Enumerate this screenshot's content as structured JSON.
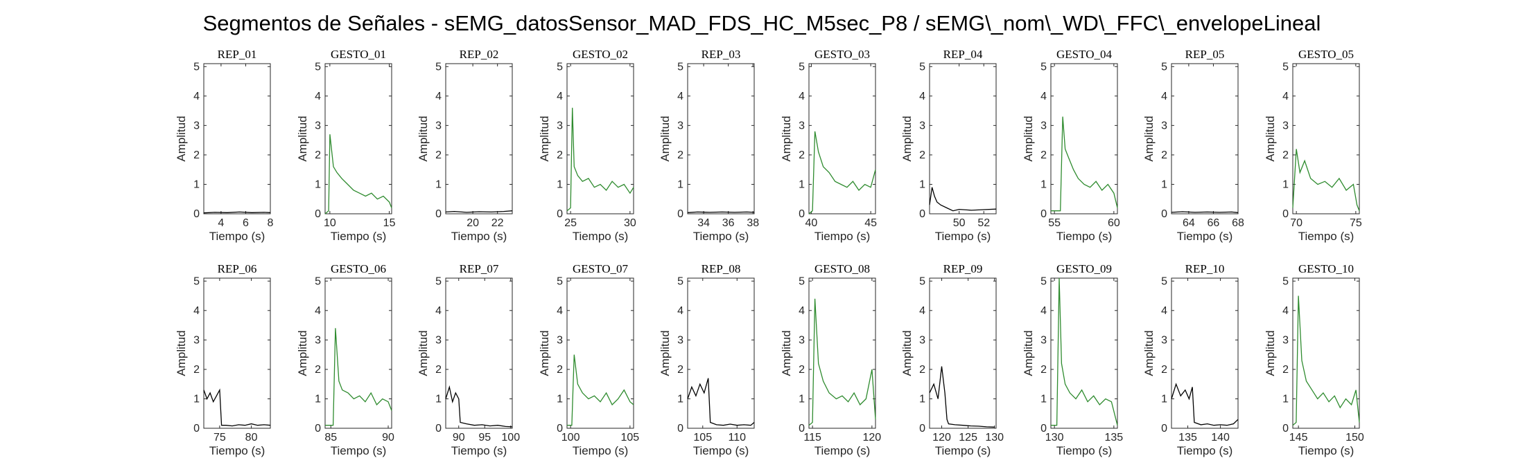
{
  "figure": {
    "title": "Segmentos de Señales - sEMG_datosSensor_MAD_FDS_HC_M5sec_P8 / sEMG\\_nom\\_WD\\_FFC\\_envelopeLineal"
  },
  "colors": {
    "rep": "#000000",
    "gesto": "#2e8b2e",
    "axes": "#262626"
  },
  "chart_data": [
    {
      "type": "line",
      "title": "REP_01",
      "xlabel": "Tiempo (s)",
      "ylabel": "Amplitud",
      "xlim": [
        2.6,
        8
      ],
      "ylim": [
        0,
        5.1
      ],
      "xticks": [
        4,
        6,
        8
      ],
      "yticks": [
        0,
        1,
        2,
        3,
        4,
        5
      ],
      "color": "#000000",
      "x": [
        2.6,
        3.5,
        4.5,
        5.5,
        6.5,
        7.5,
        8.0
      ],
      "y": [
        0.03,
        0.05,
        0.04,
        0.06,
        0.04,
        0.05,
        0.04
      ]
    },
    {
      "type": "line",
      "title": "GESTO_01",
      "xlabel": "Tiempo (s)",
      "ylabel": "Amplitud",
      "xlim": [
        9.6,
        15.2
      ],
      "ylim": [
        0,
        5.1
      ],
      "xticks": [
        10,
        15
      ],
      "yticks": [
        0,
        1,
        2,
        3,
        4,
        5
      ],
      "color": "#2e8b2e",
      "x": [
        9.6,
        9.9,
        10.0,
        10.3,
        10.6,
        11.0,
        11.5,
        12.0,
        12.5,
        13.0,
        13.5,
        14.0,
        14.5,
        15.0,
        15.2
      ],
      "y": [
        0.0,
        0.1,
        2.7,
        1.6,
        1.4,
        1.2,
        1.0,
        0.8,
        0.7,
        0.6,
        0.7,
        0.5,
        0.6,
        0.4,
        0.2
      ]
    },
    {
      "type": "line",
      "title": "REP_02",
      "xlabel": "Tiempo (s)",
      "ylabel": "Amplitud",
      "xlim": [
        17.8,
        23.2
      ],
      "ylim": [
        0,
        5.1
      ],
      "xticks": [
        20,
        22
      ],
      "yticks": [
        0,
        1,
        2,
        3,
        4,
        5
      ],
      "color": "#000000",
      "x": [
        17.8,
        18.5,
        19.5,
        20.5,
        21.5,
        22.5,
        23.2
      ],
      "y": [
        0.06,
        0.08,
        0.05,
        0.07,
        0.06,
        0.08,
        0.1
      ]
    },
    {
      "type": "line",
      "title": "GESTO_02",
      "xlabel": "Tiempo (s)",
      "ylabel": "Amplitud",
      "xlim": [
        24.7,
        30.3
      ],
      "ylim": [
        0,
        5.1
      ],
      "xticks": [
        25,
        30
      ],
      "yticks": [
        0,
        1,
        2,
        3,
        4,
        5
      ],
      "color": "#2e8b2e",
      "x": [
        24.7,
        25.0,
        25.15,
        25.3,
        25.6,
        26.0,
        26.5,
        27.0,
        27.5,
        28.0,
        28.5,
        29.0,
        29.5,
        30.0,
        30.3
      ],
      "y": [
        0.1,
        0.2,
        3.6,
        1.6,
        1.3,
        1.1,
        1.2,
        0.9,
        1.0,
        0.8,
        1.1,
        0.9,
        1.0,
        0.7,
        0.9
      ]
    },
    {
      "type": "line",
      "title": "REP_03",
      "xlabel": "Tiempo (s)",
      "ylabel": "Amplitud",
      "xlim": [
        32.7,
        38.1
      ],
      "ylim": [
        0,
        5.1
      ],
      "xticks": [
        34,
        36,
        38
      ],
      "yticks": [
        0,
        1,
        2,
        3,
        4,
        5
      ],
      "color": "#000000",
      "x": [
        32.7,
        33.5,
        34.5,
        35.5,
        36.5,
        37.5,
        38.1
      ],
      "y": [
        0.04,
        0.06,
        0.05,
        0.06,
        0.05,
        0.06,
        0.05
      ]
    },
    {
      "type": "line",
      "title": "GESTO_03",
      "xlabel": "Tiempo (s)",
      "ylabel": "Amplitud",
      "xlim": [
        39.8,
        45.4
      ],
      "ylim": [
        0,
        5.1
      ],
      "xticks": [
        40,
        45
      ],
      "yticks": [
        0,
        1,
        2,
        3,
        4,
        5
      ],
      "color": "#2e8b2e",
      "x": [
        39.8,
        40.1,
        40.3,
        40.6,
        41.0,
        41.5,
        42.0,
        42.5,
        43.0,
        43.5,
        44.0,
        44.5,
        45.0,
        45.4
      ],
      "y": [
        0.0,
        0.1,
        2.8,
        2.1,
        1.6,
        1.4,
        1.1,
        1.0,
        0.9,
        1.1,
        0.8,
        1.0,
        0.9,
        1.5
      ]
    },
    {
      "type": "line",
      "title": "REP_04",
      "xlabel": "Tiempo (s)",
      "ylabel": "Amplitud",
      "xlim": [
        47.6,
        53.0
      ],
      "ylim": [
        0,
        5.1
      ],
      "xticks": [
        50,
        52
      ],
      "yticks": [
        0,
        1,
        2,
        3,
        4,
        5
      ],
      "color": "#000000",
      "x": [
        47.6,
        47.8,
        48.0,
        48.2,
        48.5,
        49.0,
        49.5,
        50.0,
        51.0,
        52.0,
        53.0
      ],
      "y": [
        0.3,
        0.9,
        0.6,
        0.4,
        0.3,
        0.2,
        0.1,
        0.15,
        0.12,
        0.14,
        0.16
      ]
    },
    {
      "type": "line",
      "title": "GESTO_04",
      "xlabel": "Tiempo (s)",
      "ylabel": "Amplitud",
      "xlim": [
        54.7,
        60.3
      ],
      "ylim": [
        0,
        5.1
      ],
      "xticks": [
        55,
        60
      ],
      "yticks": [
        0,
        1,
        2,
        3,
        4,
        5
      ],
      "color": "#2e8b2e",
      "x": [
        54.7,
        55.5,
        55.7,
        55.9,
        56.2,
        56.6,
        57.0,
        57.5,
        58.0,
        58.5,
        59.0,
        59.5,
        60.0,
        60.3
      ],
      "y": [
        0.1,
        0.1,
        3.3,
        2.2,
        1.9,
        1.5,
        1.2,
        1.0,
        0.9,
        1.1,
        0.8,
        1.0,
        0.7,
        0.2
      ]
    },
    {
      "type": "line",
      "title": "REP_05",
      "xlabel": "Tiempo (s)",
      "ylabel": "Amplitud",
      "xlim": [
        62.6,
        68.0
      ],
      "ylim": [
        0,
        5.1
      ],
      "xticks": [
        64,
        66,
        68
      ],
      "yticks": [
        0,
        1,
        2,
        3,
        4,
        5
      ],
      "color": "#000000",
      "x": [
        62.6,
        63.5,
        64.5,
        65.5,
        66.5,
        67.5,
        68.0
      ],
      "y": [
        0.05,
        0.07,
        0.05,
        0.06,
        0.05,
        0.06,
        0.04
      ]
    },
    {
      "type": "line",
      "title": "GESTO_05",
      "xlabel": "Tiempo (s)",
      "ylabel": "Amplitud",
      "xlim": [
        69.7,
        75.3
      ],
      "ylim": [
        0,
        5.1
      ],
      "xticks": [
        70,
        75
      ],
      "yticks": [
        0,
        1,
        2,
        3,
        4,
        5
      ],
      "color": "#2e8b2e",
      "x": [
        69.7,
        70.0,
        70.3,
        70.7,
        71.2,
        71.8,
        72.4,
        73.0,
        73.6,
        74.2,
        74.8,
        75.1,
        75.3
      ],
      "y": [
        0.2,
        2.2,
        1.4,
        1.8,
        1.2,
        1.0,
        1.1,
        0.9,
        1.2,
        0.8,
        1.0,
        0.3,
        0.1
      ]
    },
    {
      "type": "line",
      "title": "REP_06",
      "xlabel": "Tiempo (s)",
      "ylabel": "Amplitud",
      "xlim": [
        72.5,
        83.0
      ],
      "ylim": [
        0,
        5.1
      ],
      "xticks": [
        75,
        80
      ],
      "yticks": [
        0,
        1,
        2,
        3,
        4,
        5
      ],
      "color": "#000000",
      "x": [
        72.5,
        73.0,
        73.5,
        74.0,
        74.5,
        75.0,
        75.3,
        76.0,
        77.0,
        78.0,
        79.0,
        80.0,
        81.0,
        82.0,
        83.0
      ],
      "y": [
        1.3,
        1.0,
        1.2,
        0.9,
        1.1,
        1.3,
        0.1,
        0.1,
        0.08,
        0.12,
        0.1,
        0.15,
        0.1,
        0.12,
        0.1
      ]
    },
    {
      "type": "line",
      "title": "GESTO_06",
      "xlabel": "Tiempo (s)",
      "ylabel": "Amplitud",
      "xlim": [
        84.5,
        90.3
      ],
      "ylim": [
        0,
        5.1
      ],
      "xticks": [
        85,
        90
      ],
      "yticks": [
        0,
        1,
        2,
        3,
        4,
        5
      ],
      "color": "#2e8b2e",
      "x": [
        84.5,
        85.2,
        85.4,
        85.7,
        86.0,
        86.5,
        87.0,
        87.5,
        88.0,
        88.5,
        89.0,
        89.5,
        90.0,
        90.3
      ],
      "y": [
        0.1,
        0.1,
        3.4,
        1.6,
        1.3,
        1.2,
        1.0,
        1.1,
        0.9,
        1.2,
        0.8,
        1.0,
        0.9,
        0.6
      ]
    },
    {
      "type": "line",
      "title": "REP_07",
      "xlabel": "Tiempo (s)",
      "ylabel": "Amplitud",
      "xlim": [
        87.5,
        100.3
      ],
      "ylim": [
        0,
        5.1
      ],
      "xticks": [
        90,
        95,
        100
      ],
      "yticks": [
        0,
        1,
        2,
        3,
        4,
        5
      ],
      "color": "#000000",
      "x": [
        87.5,
        88.2,
        88.8,
        89.4,
        90.0,
        90.3,
        91.5,
        93.0,
        94.5,
        96.0,
        97.5,
        99.0,
        100.3
      ],
      "y": [
        1.0,
        1.4,
        0.9,
        1.2,
        1.0,
        0.2,
        0.15,
        0.1,
        0.12,
        0.08,
        0.1,
        0.06,
        0.05
      ]
    },
    {
      "type": "line",
      "title": "GESTO_07",
      "xlabel": "Tiempo (s)",
      "ylabel": "Amplitud",
      "xlim": [
        99.7,
        105.3
      ],
      "ylim": [
        0,
        5.1
      ],
      "xticks": [
        100,
        105
      ],
      "yticks": [
        0,
        1,
        2,
        3,
        4,
        5
      ],
      "color": "#2e8b2e",
      "x": [
        99.7,
        100.1,
        100.3,
        100.6,
        101.0,
        101.5,
        102.0,
        102.5,
        103.0,
        103.5,
        104.0,
        104.5,
        105.0,
        105.3
      ],
      "y": [
        0.1,
        0.1,
        2.5,
        1.5,
        1.2,
        1.0,
        1.1,
        0.9,
        1.2,
        0.8,
        1.0,
        1.3,
        0.9,
        0.8
      ]
    },
    {
      "type": "line",
      "title": "REP_08",
      "xlabel": "Tiempo (s)",
      "ylabel": "Amplitud",
      "xlim": [
        102.8,
        112.5
      ],
      "ylim": [
        0,
        5.1
      ],
      "xticks": [
        105,
        110
      ],
      "yticks": [
        0,
        1,
        2,
        3,
        4,
        5
      ],
      "color": "#000000",
      "x": [
        102.8,
        103.4,
        104.0,
        104.6,
        105.2,
        105.8,
        106.1,
        107.0,
        108.0,
        109.0,
        110.0,
        111.0,
        112.0,
        112.5
      ],
      "y": [
        1.0,
        1.4,
        1.1,
        1.5,
        1.2,
        1.7,
        0.2,
        0.12,
        0.1,
        0.14,
        0.1,
        0.12,
        0.1,
        0.2
      ]
    },
    {
      "type": "line",
      "title": "GESTO_08",
      "xlabel": "Tiempo (s)",
      "ylabel": "Amplitud",
      "xlim": [
        114.7,
        120.3
      ],
      "ylim": [
        0,
        5.1
      ],
      "xticks": [
        115,
        120
      ],
      "yticks": [
        0,
        1,
        2,
        3,
        4,
        5
      ],
      "color": "#2e8b2e",
      "x": [
        114.7,
        115.0,
        115.2,
        115.5,
        115.9,
        116.4,
        117.0,
        117.5,
        118.0,
        118.5,
        119.0,
        119.5,
        120.0,
        120.3
      ],
      "y": [
        0.1,
        0.2,
        4.4,
        2.2,
        1.6,
        1.2,
        1.0,
        1.1,
        0.9,
        1.2,
        0.8,
        1.0,
        2.0,
        0.3
      ]
    },
    {
      "type": "line",
      "title": "REP_09",
      "xlabel": "Tiempo (s)",
      "ylabel": "Amplitud",
      "xlim": [
        117.7,
        130.3
      ],
      "ylim": [
        0,
        5.1
      ],
      "xticks": [
        120,
        125,
        130
      ],
      "yticks": [
        0,
        1,
        2,
        3,
        4,
        5
      ],
      "color": "#000000",
      "x": [
        117.7,
        118.5,
        119.3,
        120.0,
        120.6,
        121.0,
        121.3,
        122.5,
        124.0,
        125.5,
        127.0,
        128.5,
        130.0
      ],
      "y": [
        1.2,
        1.5,
        1.0,
        2.1,
        1.2,
        0.3,
        0.15,
        0.12,
        0.1,
        0.08,
        0.07,
        0.05,
        0.04
      ]
    },
    {
      "type": "line",
      "title": "GESTO_09",
      "xlabel": "Tiempo (s)",
      "ylabel": "Amplitud",
      "xlim": [
        129.7,
        135.3
      ],
      "ylim": [
        0,
        5.1
      ],
      "xticks": [
        130,
        135
      ],
      "yticks": [
        0,
        1,
        2,
        3,
        4,
        5
      ],
      "color": "#2e8b2e",
      "x": [
        129.7,
        130.2,
        130.4,
        130.6,
        130.9,
        131.3,
        131.8,
        132.3,
        132.8,
        133.3,
        133.8,
        134.3,
        134.8,
        135.3
      ],
      "y": [
        0.1,
        0.1,
        5.1,
        2.2,
        1.5,
        1.2,
        1.0,
        1.3,
        0.9,
        1.1,
        0.8,
        1.0,
        0.9,
        0.1
      ]
    },
    {
      "type": "line",
      "title": "REP_10",
      "xlabel": "Tiempo (s)",
      "ylabel": "Amplitud",
      "xlim": [
        132.5,
        142.7
      ],
      "ylim": [
        0,
        5.1
      ],
      "xticks": [
        135,
        140
      ],
      "yticks": [
        0,
        1,
        2,
        3,
        4,
        5
      ],
      "color": "#000000",
      "x": [
        132.5,
        133.2,
        133.9,
        134.6,
        135.2,
        135.7,
        136.0,
        137.0,
        138.0,
        139.0,
        140.0,
        141.0,
        142.0,
        142.7
      ],
      "y": [
        1.0,
        1.5,
        1.1,
        1.3,
        1.0,
        1.4,
        0.2,
        0.12,
        0.15,
        0.1,
        0.12,
        0.1,
        0.15,
        0.3
      ]
    },
    {
      "type": "line",
      "title": "GESTO_10",
      "xlabel": "Tiempo (s)",
      "ylabel": "Amplitud",
      "xlim": [
        144.5,
        150.4
      ],
      "ylim": [
        0,
        5.1
      ],
      "xticks": [
        145,
        150
      ],
      "yticks": [
        0,
        1,
        2,
        3,
        4,
        5
      ],
      "color": "#2e8b2e",
      "x": [
        144.5,
        144.8,
        145.0,
        145.3,
        145.7,
        146.2,
        146.7,
        147.2,
        147.7,
        148.2,
        148.7,
        149.2,
        149.7,
        150.1,
        150.4
      ],
      "y": [
        0.1,
        0.2,
        4.5,
        2.3,
        1.6,
        1.3,
        1.0,
        1.2,
        0.9,
        1.1,
        0.7,
        1.0,
        0.8,
        1.3,
        0.2
      ]
    }
  ]
}
